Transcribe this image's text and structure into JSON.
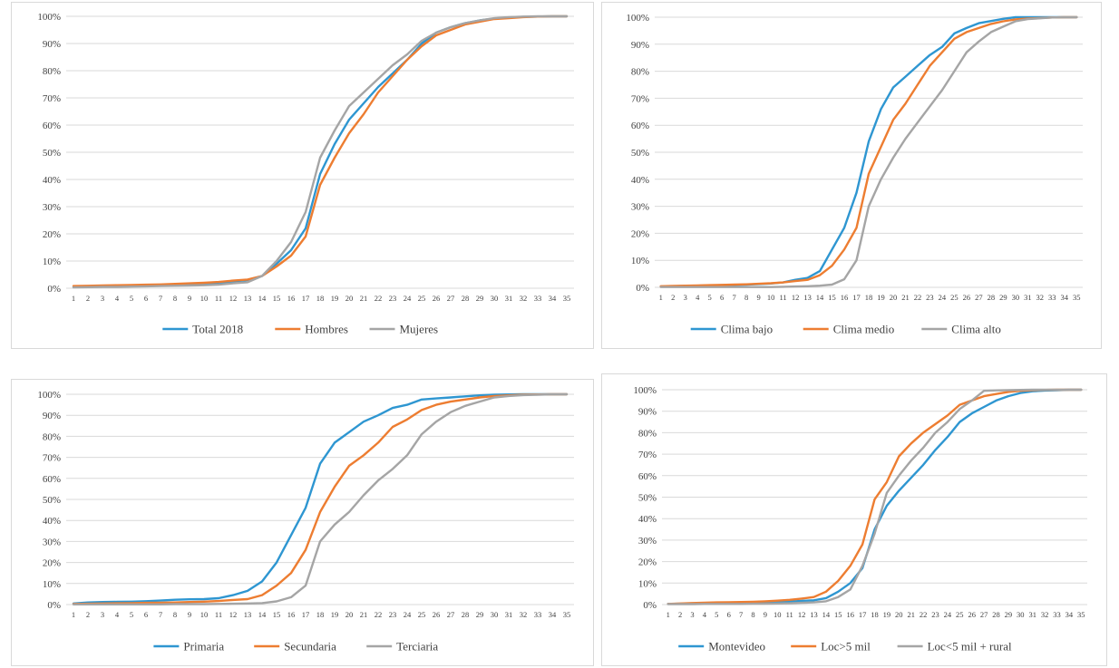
{
  "chart_data": [
    {
      "type": "line",
      "title": "",
      "xlabel": "",
      "ylabel": "",
      "ylim": [
        0,
        100
      ],
      "y_ticks": [
        "0%",
        "10%",
        "20%",
        "30%",
        "40%",
        "50%",
        "60%",
        "70%",
        "80%",
        "90%",
        "100%"
      ],
      "categories": [
        "1",
        "2",
        "3",
        "4",
        "5",
        "6",
        "7",
        "8",
        "9",
        "10",
        "11",
        "12",
        "13",
        "14",
        "15",
        "16",
        "17",
        "18",
        "19",
        "20",
        "21",
        "22",
        "23",
        "24",
        "25",
        "26",
        "27",
        "28",
        "29",
        "30",
        "31",
        "32",
        "33",
        "34",
        "35"
      ],
      "series": [
        {
          "name": "Total 2018",
          "color": "#2e96d1",
          "values": [
            0.5,
            0.6,
            0.7,
            0.8,
            0.9,
            1.0,
            1.1,
            1.2,
            1.4,
            1.6,
            1.9,
            2.5,
            3.0,
            4.5,
            9.0,
            14.0,
            22.0,
            42.0,
            53.0,
            62.0,
            68.0,
            74.0,
            79.0,
            84.0,
            90.0,
            94.0,
            96.0,
            97.5,
            98.5,
            99.2,
            99.6,
            99.8,
            99.9,
            100,
            100
          ]
        },
        {
          "name": "Hombres",
          "color": "#ed7d31",
          "values": [
            0.8,
            0.9,
            1.0,
            1.1,
            1.2,
            1.3,
            1.4,
            1.6,
            1.8,
            2.0,
            2.3,
            2.8,
            3.2,
            4.5,
            8.0,
            12.0,
            19.0,
            38.0,
            48.0,
            57.0,
            64.0,
            72.0,
            78.0,
            84.0,
            89.0,
            93.0,
            95.0,
            97.0,
            98.0,
            99.0,
            99.3,
            99.7,
            99.9,
            100,
            100
          ]
        },
        {
          "name": "Mujeres",
          "color": "#a5a5a5",
          "values": [
            0.3,
            0.4,
            0.5,
            0.5,
            0.6,
            0.7,
            0.8,
            0.9,
            1.0,
            1.1,
            1.3,
            1.8,
            2.2,
            4.5,
            10.0,
            17.0,
            28.0,
            48.0,
            58.0,
            67.0,
            72.0,
            77.0,
            82.0,
            86.0,
            91.0,
            94.0,
            96.0,
            97.5,
            98.5,
            99.3,
            99.7,
            99.9,
            100,
            100,
            100
          ]
        }
      ]
    },
    {
      "type": "line",
      "title": "",
      "xlabel": "",
      "ylabel": "",
      "ylim": [
        0,
        100
      ],
      "y_ticks": [
        "0%",
        "10%",
        "20%",
        "30%",
        "40%",
        "50%",
        "60%",
        "70%",
        "80%",
        "90%",
        "100%"
      ],
      "categories": [
        "1",
        "2",
        "3",
        "4",
        "5",
        "6",
        "7",
        "8",
        "9",
        "10",
        "11",
        "12",
        "13",
        "14",
        "15",
        "16",
        "17",
        "18",
        "19",
        "20",
        "21",
        "22",
        "23",
        "24",
        "25",
        "26",
        "27",
        "28",
        "29",
        "30",
        "31",
        "32",
        "33",
        "34",
        "35"
      ],
      "series": [
        {
          "name": "Clima bajo",
          "color": "#2e96d1",
          "values": [
            0.3,
            0.4,
            0.5,
            0.6,
            0.7,
            0.8,
            0.9,
            1.0,
            1.2,
            1.4,
            1.8,
            2.8,
            3.5,
            6.0,
            14.0,
            22.0,
            35.0,
            54.0,
            66.0,
            74.0,
            78.0,
            82.0,
            86.0,
            89.0,
            94.0,
            96.0,
            97.8,
            98.6,
            99.4,
            100,
            100,
            100,
            100,
            100,
            100
          ]
        },
        {
          "name": "Clima medio",
          "color": "#ed7d31",
          "values": [
            0.4,
            0.5,
            0.6,
            0.7,
            0.8,
            0.9,
            1.0,
            1.1,
            1.3,
            1.5,
            1.8,
            2.3,
            2.8,
            4.5,
            8.0,
            14.0,
            22.0,
            42.0,
            52.0,
            62.0,
            68.0,
            75.0,
            82.0,
            87.0,
            92.0,
            94.5,
            96.0,
            97.5,
            98.5,
            99.2,
            99.5,
            99.7,
            99.9,
            100,
            100
          ]
        },
        {
          "name": "Clima alto",
          "color": "#a5a5a5",
          "values": [
            0.1,
            0.1,
            0.1,
            0.1,
            0.1,
            0.1,
            0.1,
            0.1,
            0.1,
            0.1,
            0.2,
            0.3,
            0.4,
            0.6,
            1.0,
            3.0,
            10.0,
            30.0,
            40.0,
            48.0,
            55.0,
            61.0,
            67.0,
            73.0,
            80.0,
            87.0,
            91.0,
            94.5,
            96.5,
            98.5,
            99.3,
            99.6,
            99.9,
            100,
            100
          ]
        }
      ]
    },
    {
      "type": "line",
      "title": "",
      "xlabel": "",
      "ylabel": "",
      "ylim": [
        0,
        100
      ],
      "y_ticks": [
        "0%",
        "10%",
        "20%",
        "30%",
        "40%",
        "50%",
        "60%",
        "70%",
        "80%",
        "90%",
        "100%"
      ],
      "categories": [
        "1",
        "2",
        "3",
        "4",
        "5",
        "6",
        "7",
        "8",
        "9",
        "10",
        "11",
        "12",
        "13",
        "14",
        "15",
        "16",
        "17",
        "18",
        "19",
        "20",
        "21",
        "22",
        "23",
        "24",
        "25",
        "26",
        "27",
        "28",
        "29",
        "30",
        "31",
        "32",
        "33",
        "34",
        "35"
      ],
      "series": [
        {
          "name": "Primaria",
          "color": "#2e96d1",
          "values": [
            0.5,
            1.0,
            1.2,
            1.3,
            1.4,
            1.6,
            1.9,
            2.3,
            2.5,
            2.6,
            3.0,
            4.5,
            6.5,
            11.0,
            20.0,
            33.0,
            46.0,
            67.0,
            77.0,
            82.0,
            87.0,
            90.0,
            93.5,
            95.0,
            97.5,
            98.0,
            98.5,
            99.0,
            99.5,
            99.8,
            99.9,
            100,
            100,
            100,
            100
          ]
        },
        {
          "name": "Secundaria",
          "color": "#ed7d31",
          "values": [
            0.3,
            0.4,
            0.5,
            0.6,
            0.7,
            0.8,
            0.9,
            1.0,
            1.2,
            1.4,
            1.7,
            2.2,
            2.6,
            4.5,
            9.0,
            15.0,
            26.0,
            44.0,
            56.0,
            66.0,
            71.0,
            77.0,
            84.5,
            88.0,
            92.5,
            95.0,
            96.5,
            97.5,
            98.5,
            99.2,
            99.5,
            99.8,
            99.9,
            100,
            100
          ]
        },
        {
          "name": "Terciaria",
          "color": "#a5a5a5",
          "values": [
            0.1,
            0.1,
            0.1,
            0.1,
            0.1,
            0.1,
            0.1,
            0.2,
            0.2,
            0.2,
            0.3,
            0.4,
            0.5,
            0.7,
            1.5,
            3.5,
            9.0,
            30.0,
            38.0,
            44.0,
            52.0,
            59.0,
            64.5,
            71.0,
            81.0,
            87.0,
            91.5,
            94.5,
            96.5,
            98.5,
            99.2,
            99.6,
            99.8,
            100,
            100
          ]
        }
      ]
    },
    {
      "type": "line",
      "title": "",
      "xlabel": "",
      "ylabel": "",
      "ylim": [
        0,
        100
      ],
      "y_ticks": [
        "0%",
        "10%",
        "20%",
        "30%",
        "40%",
        "50%",
        "60%",
        "70%",
        "80%",
        "90%",
        "100%"
      ],
      "categories": [
        "1",
        "2",
        "3",
        "4",
        "5",
        "6",
        "7",
        "8",
        "9",
        "10",
        "11",
        "12",
        "13",
        "14",
        "15",
        "16",
        "17",
        "18",
        "19",
        "20",
        "21",
        "22",
        "23",
        "24",
        "25",
        "26",
        "27",
        "28",
        "29",
        "30",
        "31",
        "32",
        "33",
        "34",
        "35"
      ],
      "series": [
        {
          "name": "Montevideo",
          "color": "#2e96d1",
          "values": [
            0.3,
            0.4,
            0.5,
            0.6,
            0.7,
            0.8,
            0.9,
            1.0,
            1.1,
            1.2,
            1.4,
            1.7,
            2.0,
            3.0,
            6.0,
            10.0,
            17.0,
            35.0,
            46.0,
            53.0,
            59.0,
            65.0,
            72.0,
            78.0,
            85.0,
            89.0,
            92.0,
            95.0,
            97.0,
            98.5,
            99.3,
            99.6,
            99.8,
            100,
            100
          ]
        },
        {
          "name": "Loc>5 mil",
          "color": "#ed7d31",
          "values": [
            0.3,
            0.5,
            0.7,
            0.9,
            1.0,
            1.1,
            1.2,
            1.3,
            1.5,
            1.8,
            2.2,
            2.8,
            3.5,
            6.0,
            11.0,
            18.0,
            28.0,
            49.0,
            57.0,
            69.0,
            75.0,
            80.0,
            84.0,
            88.0,
            93.0,
            95.0,
            97.0,
            98.0,
            99.0,
            99.5,
            99.8,
            99.9,
            100,
            100,
            100
          ]
        },
        {
          "name": "Loc<5 mil + rural",
          "color": "#a5a5a5",
          "values": [
            0.2,
            0.2,
            0.2,
            0.3,
            0.3,
            0.3,
            0.3,
            0.4,
            0.4,
            0.5,
            0.6,
            0.8,
            1.0,
            1.5,
            3.5,
            7.0,
            18.0,
            33.0,
            52.0,
            60.0,
            67.0,
            73.0,
            80.0,
            85.0,
            91.0,
            95.0,
            99.5,
            99.7,
            99.8,
            99.9,
            100,
            100,
            100,
            100,
            100
          ]
        }
      ]
    }
  ]
}
